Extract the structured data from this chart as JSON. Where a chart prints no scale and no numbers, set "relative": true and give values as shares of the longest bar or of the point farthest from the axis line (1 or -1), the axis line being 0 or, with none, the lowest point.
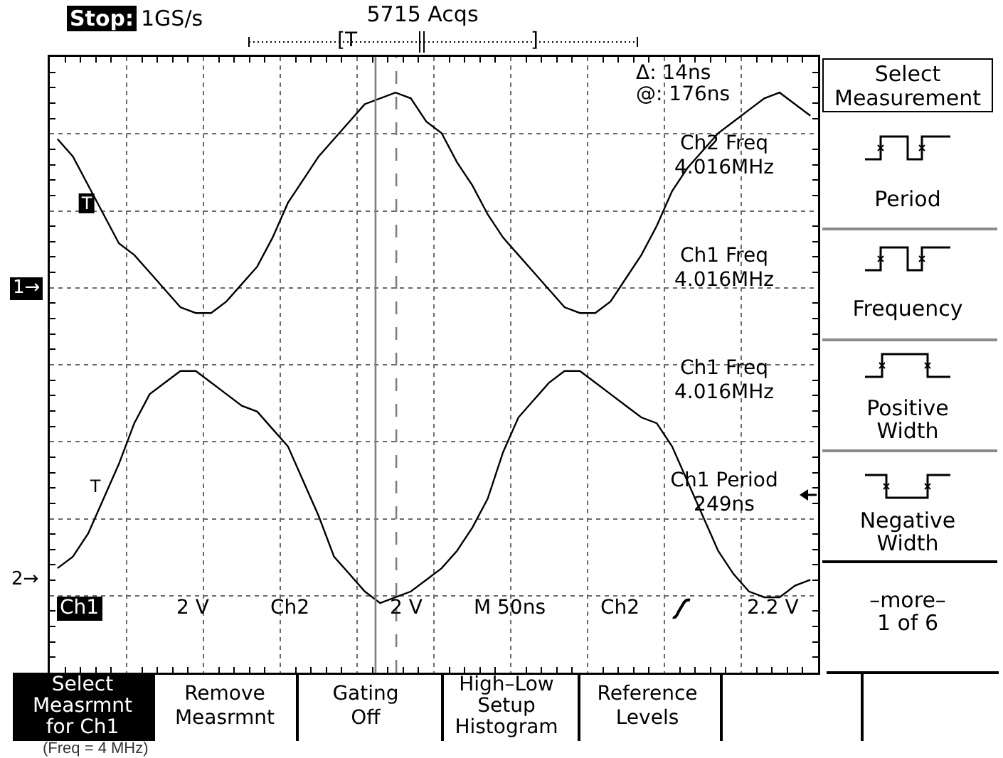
{
  "chart_data": {
    "type": "line",
    "relative": true,
    "categories": [
      null,
      null,
      null,
      null,
      null,
      null,
      null,
      null,
      null,
      null,
      null,
      null,
      null,
      null,
      null,
      null,
      null,
      null,
      null,
      null,
      null,
      null,
      null,
      null,
      null,
      null,
      null,
      null,
      null,
      null,
      null,
      null,
      null,
      null,
      null,
      null,
      null,
      null,
      null,
      null,
      null,
      null,
      null,
      null,
      null,
      null,
      null,
      null,
      null,
      null
    ],
    "grid": true,
    "series": [
      {
        "color": "#000000",
        "values": [
          0.92,
          0.89,
          0.84,
          0.79,
          0.74,
          0.72,
          0.69,
          0.66,
          0.63,
          0.62,
          0.62,
          0.64,
          0.67,
          0.7,
          0.75,
          0.81,
          0.85,
          0.89,
          0.92,
          0.95,
          0.98,
          0.99,
          1.0,
          0.99,
          0.95,
          0.93,
          0.88,
          0.84,
          0.79,
          0.75,
          0.72,
          0.69,
          0.66,
          0.63,
          0.62,
          0.62,
          0.64,
          0.68,
          0.72,
          0.77,
          0.83,
          0.87,
          0.9,
          0.93,
          0.95,
          0.97,
          0.99,
          1.0,
          0.98,
          0.96
        ]
      },
      {
        "color": "#000000",
        "values": [
          0.18,
          0.2,
          0.24,
          0.3,
          0.36,
          0.43,
          0.48,
          0.5,
          0.52,
          0.52,
          0.5,
          0.48,
          0.46,
          0.45,
          0.42,
          0.39,
          0.33,
          0.27,
          0.2,
          0.17,
          0.14,
          0.12,
          0.13,
          0.14,
          0.16,
          0.18,
          0.21,
          0.25,
          0.3,
          0.38,
          0.44,
          0.47,
          0.5,
          0.52,
          0.52,
          0.5,
          0.48,
          0.46,
          0.44,
          0.43,
          0.39,
          0.33,
          0.27,
          0.21,
          0.17,
          0.14,
          0.13,
          0.13,
          0.15,
          0.16
        ]
      }
    ],
    "annotations": [
      "Stop:",
      "1GS/s",
      "5715 Acqs",
      "[T",
      "]",
      "Δ: 14ns",
      "@: 176ns",
      "Ch2 Freq\n4.016MHz",
      "Ch1 Freq\n4.016MHz",
      "Ch1 Freq\n4.016MHz",
      "Ch1 Period\n249ns",
      "1→",
      "2→",
      "T",
      "T",
      "Ch1",
      "2 V",
      "Ch2",
      "2 V",
      "M 50ns",
      "Ch2",
      "2.2 V",
      "Select\nMeasurement",
      "Period",
      "Frequency",
      "Positive\nWidth",
      "Negative\nWidth",
      "–more–\n1 of 6",
      "Select\nMeasrmnt\nfor Ch1",
      "Remove\nMeasrmnt",
      "Gating\nOff",
      "High–Low\nSetup\nHistogram",
      "Reference\nLevels",
      "(Freq = 4 MHz)"
    ]
  }
}
